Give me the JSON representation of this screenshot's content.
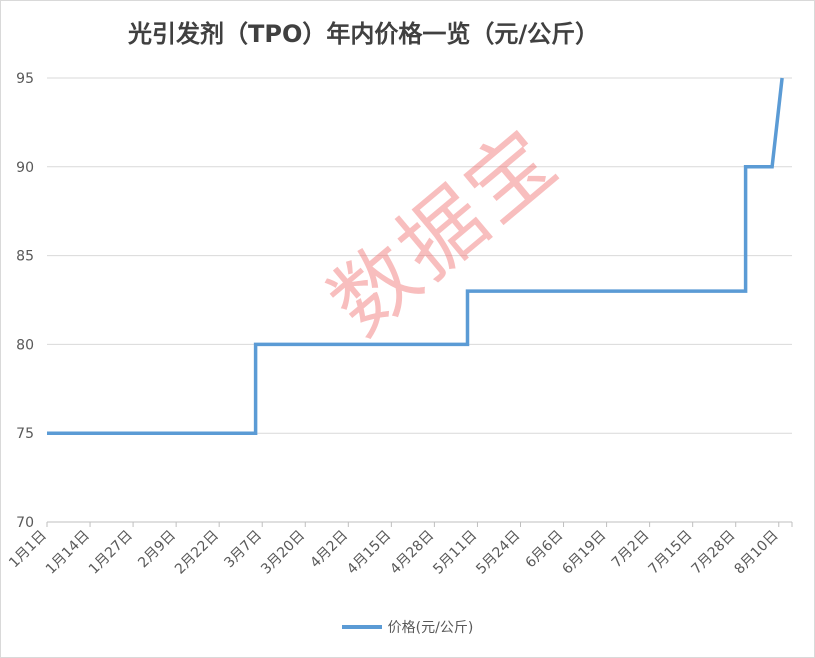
{
  "chart_data": {
    "type": "line",
    "title": "光引发剂（TPO）年内价格一览（元/公斤）",
    "xlabel": "",
    "ylabel": "",
    "ylim": [
      70,
      95
    ],
    "y_ticks": [
      "70",
      "75",
      "80",
      "85",
      "90",
      "95"
    ],
    "x_tick_labels": [
      "1月1日",
      "1月14日",
      "1月27日",
      "2月9日",
      "2月22日",
      "3月7日",
      "3月20日",
      "4月2日",
      "4月15日",
      "4月28日",
      "5月11日",
      "5月24日",
      "6月6日",
      "6月19日",
      "7月2日",
      "7月15日",
      "7月28日",
      "8月10日"
    ],
    "grid": true,
    "legend_position": "bottom",
    "series": [
      {
        "name": "价格(元/公斤)",
        "color": "#5b9bd5",
        "points": [
          {
            "x": "1月1日",
            "y": 75
          },
          {
            "x": "3月5日",
            "y": 75
          },
          {
            "x": "3月5日",
            "y": 80
          },
          {
            "x": "5月8日",
            "y": 80
          },
          {
            "x": "5月8日",
            "y": 83
          },
          {
            "x": "7月31日",
            "y": 83
          },
          {
            "x": "7月31日",
            "y": 90
          },
          {
            "x": "8月8日",
            "y": 90
          },
          {
            "x": "8月11日",
            "y": 95
          }
        ]
      }
    ]
  },
  "watermark": "数据宝"
}
